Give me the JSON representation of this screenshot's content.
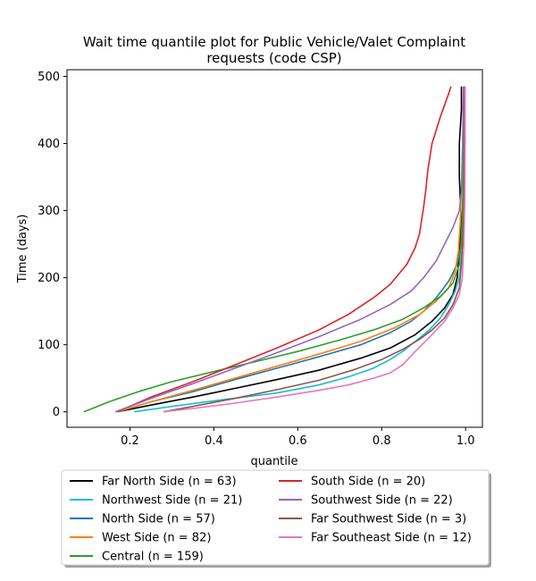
{
  "chart_data": {
    "type": "line",
    "title_line1": "Wait time quantile plot for Public Vehicle/Valet Complaint",
    "title_line2": "requests (code CSP)",
    "xlabel": "quantile",
    "ylabel": "Time (days)",
    "xlim": [
      0.05,
      1.04
    ],
    "ylim": [
      -23,
      510
    ],
    "xticks": [
      0.2,
      0.4,
      0.6,
      0.8,
      1.0
    ],
    "xtick_labels": [
      "0.2",
      "0.4",
      "0.6",
      "0.8",
      "1.0"
    ],
    "yticks": [
      0,
      100,
      200,
      300,
      400,
      500
    ],
    "ytick_labels": [
      "0",
      "100",
      "200",
      "300",
      "400",
      "500"
    ],
    "grid": false,
    "legend_placement": "below plot, two columns",
    "series": [
      {
        "name": "Far North Side (n = 63)",
        "color": "#000000",
        "points": [
          [
            0.17,
            0
          ],
          [
            0.25,
            10
          ],
          [
            0.35,
            22
          ],
          [
            0.45,
            35
          ],
          [
            0.55,
            48
          ],
          [
            0.65,
            62
          ],
          [
            0.75,
            80
          ],
          [
            0.82,
            95
          ],
          [
            0.88,
            115
          ],
          [
            0.92,
            135
          ],
          [
            0.95,
            155
          ],
          [
            0.97,
            175
          ],
          [
            0.98,
            200
          ],
          [
            0.985,
            240
          ],
          [
            0.99,
            280
          ],
          [
            0.985,
            350
          ],
          [
            0.985,
            400
          ],
          [
            0.99,
            450
          ],
          [
            0.99,
            485
          ]
        ]
      },
      {
        "name": "Northwest Side (n = 21)",
        "color": "#17becf",
        "points": [
          [
            0.21,
            0
          ],
          [
            0.3,
            8
          ],
          [
            0.42,
            18
          ],
          [
            0.55,
            28
          ],
          [
            0.65,
            40
          ],
          [
            0.72,
            52
          ],
          [
            0.78,
            65
          ],
          [
            0.82,
            78
          ],
          [
            0.85,
            90
          ],
          [
            0.88,
            105
          ],
          [
            0.91,
            120
          ],
          [
            0.94,
            140
          ],
          [
            0.96,
            160
          ],
          [
            0.975,
            180
          ],
          [
            0.985,
            200
          ],
          [
            0.99,
            230
          ],
          [
            0.995,
            270
          ],
          [
            0.997,
            330
          ],
          [
            0.998,
            400
          ],
          [
            0.998,
            485
          ]
        ]
      },
      {
        "name": "North Side (n = 57)",
        "color": "#1f77b4",
        "points": [
          [
            0.17,
            0
          ],
          [
            0.25,
            15
          ],
          [
            0.35,
            30
          ],
          [
            0.45,
            48
          ],
          [
            0.55,
            65
          ],
          [
            0.65,
            82
          ],
          [
            0.75,
            100
          ],
          [
            0.82,
            118
          ],
          [
            0.87,
            135
          ],
          [
            0.9,
            150
          ],
          [
            0.93,
            170
          ],
          [
            0.96,
            195
          ],
          [
            0.98,
            220
          ],
          [
            0.99,
            250
          ],
          [
            0.995,
            290
          ],
          [
            0.997,
            350
          ],
          [
            0.998,
            420
          ],
          [
            0.998,
            485
          ]
        ]
      },
      {
        "name": "West Side (n = 82)",
        "color": "#ff7f0e",
        "points": [
          [
            0.17,
            0
          ],
          [
            0.25,
            15
          ],
          [
            0.35,
            32
          ],
          [
            0.45,
            50
          ],
          [
            0.55,
            68
          ],
          [
            0.65,
            86
          ],
          [
            0.75,
            105
          ],
          [
            0.83,
            125
          ],
          [
            0.89,
            145
          ],
          [
            0.93,
            165
          ],
          [
            0.96,
            185
          ],
          [
            0.975,
            210
          ],
          [
            0.983,
            240
          ],
          [
            0.987,
            280
          ],
          [
            0.99,
            330
          ],
          [
            0.993,
            400
          ],
          [
            0.995,
            485
          ]
        ]
      },
      {
        "name": "Central (n = 159)",
        "color": "#2ca02c",
        "points": [
          [
            0.09,
            0
          ],
          [
            0.15,
            15
          ],
          [
            0.22,
            30
          ],
          [
            0.3,
            45
          ],
          [
            0.4,
            60
          ],
          [
            0.5,
            75
          ],
          [
            0.6,
            90
          ],
          [
            0.7,
            107
          ],
          [
            0.78,
            122
          ],
          [
            0.85,
            138
          ],
          [
            0.9,
            155
          ],
          [
            0.94,
            172
          ],
          [
            0.97,
            192
          ],
          [
            0.985,
            220
          ],
          [
            0.99,
            260
          ],
          [
            0.993,
            310
          ],
          [
            0.995,
            380
          ],
          [
            0.996,
            440
          ],
          [
            0.997,
            485
          ]
        ]
      },
      {
        "name": "South Side (n = 20)",
        "color": "#d62728",
        "points": [
          [
            0.17,
            0
          ],
          [
            0.25,
            22
          ],
          [
            0.35,
            45
          ],
          [
            0.45,
            70
          ],
          [
            0.55,
            95
          ],
          [
            0.65,
            122
          ],
          [
            0.72,
            145
          ],
          [
            0.78,
            170
          ],
          [
            0.82,
            190
          ],
          [
            0.86,
            220
          ],
          [
            0.88,
            245
          ],
          [
            0.89,
            265
          ],
          [
            0.895,
            285
          ],
          [
            0.9,
            305
          ],
          [
            0.905,
            330
          ],
          [
            0.91,
            360
          ],
          [
            0.92,
            400
          ],
          [
            0.94,
            440
          ],
          [
            0.96,
            475
          ],
          [
            0.965,
            485
          ]
        ]
      },
      {
        "name": "Southwest Side (n = 22)",
        "color": "#9467bd",
        "points": [
          [
            0.165,
            0
          ],
          [
            0.25,
            20
          ],
          [
            0.35,
            42
          ],
          [
            0.45,
            65
          ],
          [
            0.55,
            88
          ],
          [
            0.65,
            112
          ],
          [
            0.75,
            138
          ],
          [
            0.82,
            160
          ],
          [
            0.87,
            180
          ],
          [
            0.9,
            200
          ],
          [
            0.93,
            225
          ],
          [
            0.95,
            250
          ],
          [
            0.97,
            275
          ],
          [
            0.985,
            300
          ],
          [
            0.99,
            330
          ],
          [
            0.993,
            400
          ],
          [
            0.995,
            485
          ]
        ]
      },
      {
        "name": "Far Southwest Side (n = 3)",
        "color": "#8c564b",
        "points": [
          [
            0.28,
            0
          ],
          [
            0.35,
            8
          ],
          [
            0.45,
            20
          ],
          [
            0.55,
            33
          ],
          [
            0.65,
            47
          ],
          [
            0.73,
            62
          ],
          [
            0.8,
            78
          ],
          [
            0.85,
            93
          ],
          [
            0.89,
            108
          ],
          [
            0.92,
            122
          ],
          [
            0.95,
            140
          ],
          [
            0.97,
            160
          ],
          [
            0.985,
            185
          ],
          [
            0.99,
            220
          ],
          [
            0.995,
            280
          ],
          [
            0.997,
            350
          ],
          [
            0.998,
            420
          ],
          [
            0.998,
            485
          ]
        ]
      },
      {
        "name": "Far Southeast Side (n = 12)",
        "color": "#e377c2",
        "points": [
          [
            0.28,
            0
          ],
          [
            0.35,
            5
          ],
          [
            0.45,
            13
          ],
          [
            0.55,
            22
          ],
          [
            0.65,
            32
          ],
          [
            0.72,
            40
          ],
          [
            0.78,
            50
          ],
          [
            0.82,
            58
          ],
          [
            0.85,
            70
          ],
          [
            0.88,
            90
          ],
          [
            0.92,
            115
          ],
          [
            0.95,
            135
          ],
          [
            0.97,
            155
          ],
          [
            0.985,
            175
          ],
          [
            0.992,
            200
          ],
          [
            0.996,
            250
          ],
          [
            0.998,
            320
          ],
          [
            0.999,
            400
          ],
          [
            0.999,
            485
          ]
        ]
      }
    ]
  }
}
